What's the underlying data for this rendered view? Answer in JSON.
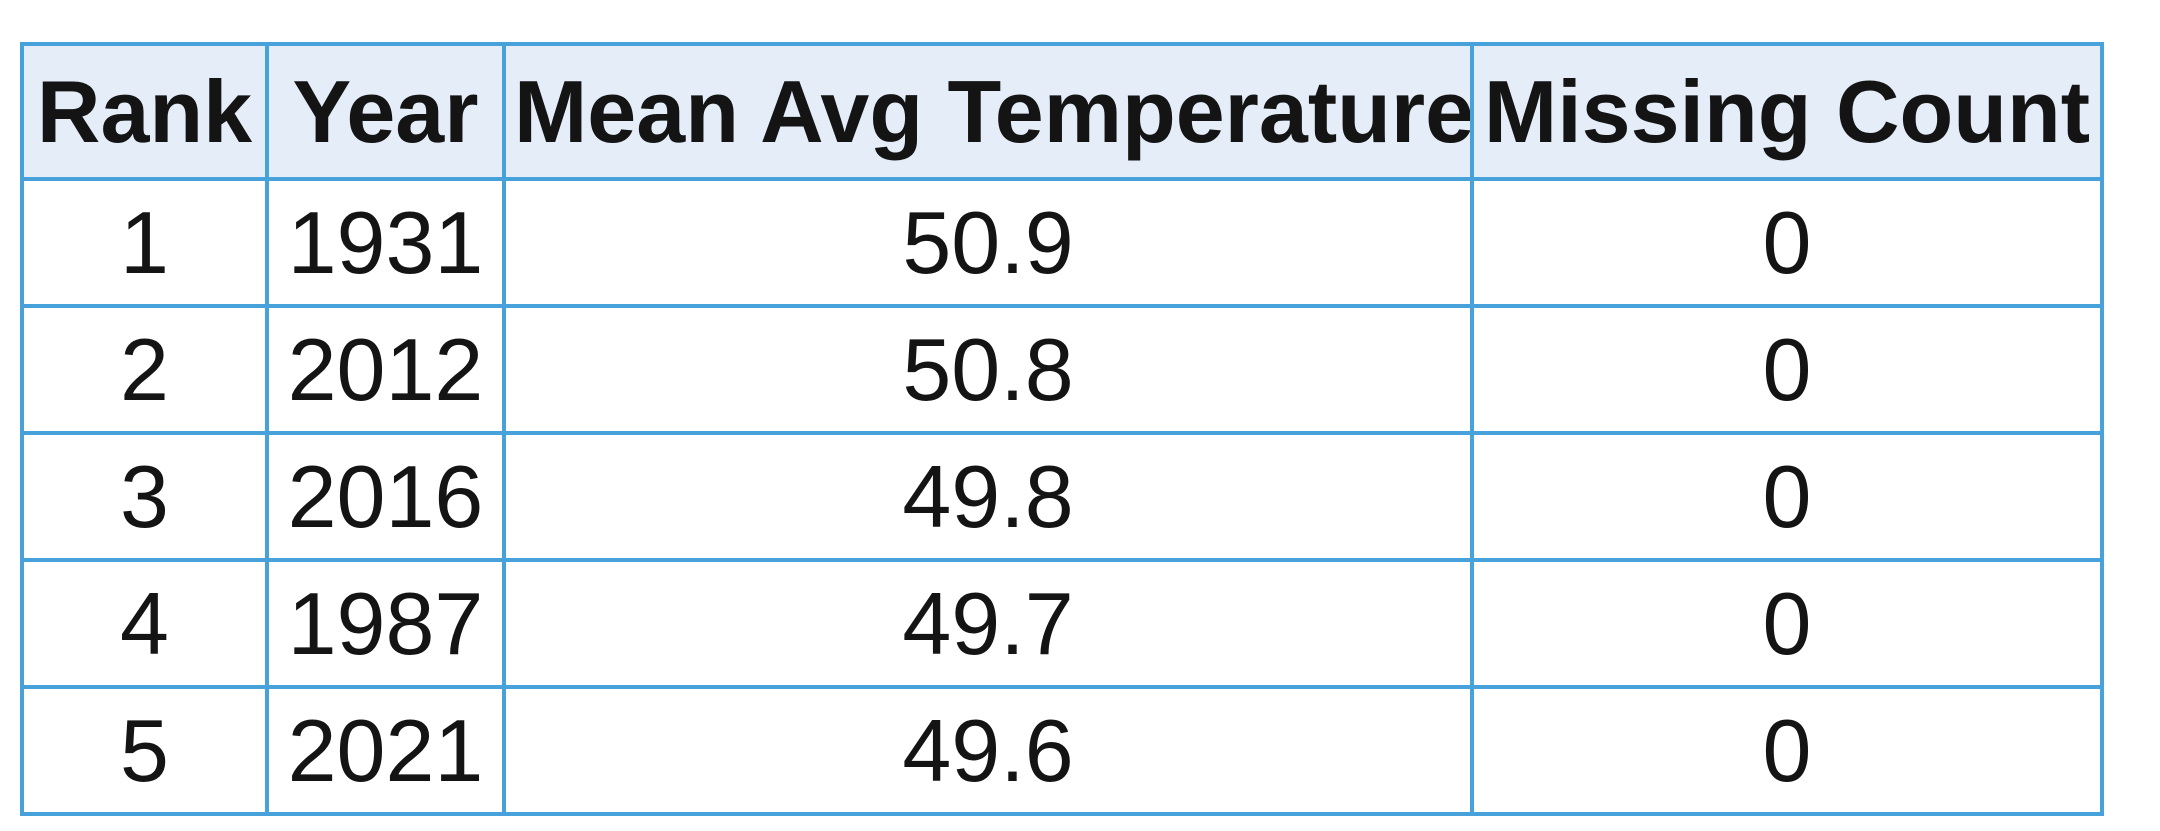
{
  "page": {
    "background": "#ffffff"
  },
  "table": {
    "name": "top-5-years-by-mean-avg-temperature",
    "columns": [
      {
        "id": "rank",
        "label": "Rank"
      },
      {
        "id": "year",
        "label": "Year"
      },
      {
        "id": "mean_avg_temperature",
        "label": "Mean Avg Temperature"
      },
      {
        "id": "missing_count",
        "label": "Missing Count"
      }
    ],
    "rows": [
      {
        "rank": "1",
        "year": "1931",
        "mean_avg_temperature": "50.9",
        "missing_count": "0"
      },
      {
        "rank": "2",
        "year": "2012",
        "mean_avg_temperature": "50.8",
        "missing_count": "0"
      },
      {
        "rank": "3",
        "year": "2016",
        "mean_avg_temperature": "49.8",
        "missing_count": "0"
      },
      {
        "rank": "4",
        "year": "1987",
        "mean_avg_temperature": "49.7",
        "missing_count": "0"
      },
      {
        "rank": "5",
        "year": "2021",
        "mean_avg_temperature": "49.6",
        "missing_count": "0"
      }
    ],
    "style": {
      "border_color": "#47a2dc",
      "header_bg": "#e4edf8",
      "row_bg": "#ffffff",
      "text_color": "#141414"
    }
  },
  "chart_data": {
    "type": "table",
    "title": "",
    "columns": [
      "Rank",
      "Year",
      "Mean Avg Temperature",
      "Missing Count"
    ],
    "rows": [
      [
        1,
        1931,
        50.9,
        0
      ],
      [
        2,
        2012,
        50.8,
        0
      ],
      [
        3,
        2016,
        49.8,
        0
      ],
      [
        4,
        1987,
        49.7,
        0
      ],
      [
        5,
        2021,
        49.6,
        0
      ]
    ]
  }
}
